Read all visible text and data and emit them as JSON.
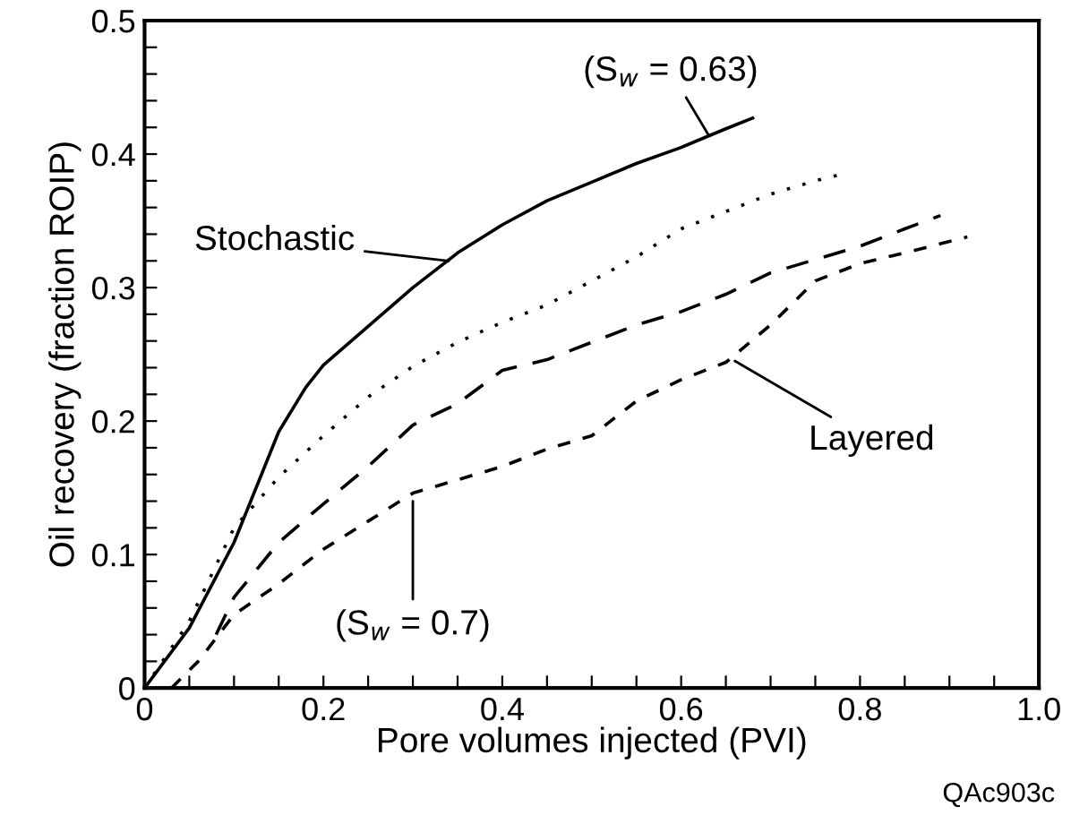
{
  "chart_data": {
    "type": "line",
    "xlabel": "Pore volumes injected (PVI)",
    "ylabel": "Oil recovery (fraction ROIP)",
    "xlim": [
      0,
      1
    ],
    "ylim": [
      0,
      0.5
    ],
    "xticks": [
      0,
      {
        "value": 0.05,
        "label": null
      },
      {
        "value": 0.1,
        "label": null
      },
      {
        "value": 0.15,
        "label": null
      },
      0.2,
      {
        "value": 0.25,
        "label": null
      },
      {
        "value": 0.3,
        "label": null
      },
      {
        "value": 0.35,
        "label": null
      },
      0.4,
      {
        "value": 0.45,
        "label": null
      },
      {
        "value": 0.5,
        "label": null
      },
      {
        "value": 0.55,
        "label": null
      },
      0.6,
      {
        "value": 0.65,
        "label": null
      },
      {
        "value": 0.7,
        "label": null
      },
      {
        "value": 0.75,
        "label": null
      },
      0.8,
      {
        "value": 0.85,
        "label": null
      },
      {
        "value": 0.9,
        "label": null
      },
      {
        "value": 0.95,
        "label": null
      },
      {
        "value": 1,
        "label": "1.0"
      }
    ],
    "yticks": [
      0,
      {
        "value": 0.02,
        "label": null
      },
      {
        "value": 0.04,
        "label": null
      },
      {
        "value": 0.06,
        "label": null
      },
      {
        "value": 0.08,
        "label": null
      },
      0.1,
      {
        "value": 0.12,
        "label": null
      },
      {
        "value": 0.14,
        "label": null
      },
      {
        "value": 0.16,
        "label": null
      },
      {
        "value": 0.18,
        "label": null
      },
      0.2,
      {
        "value": 0.22,
        "label": null
      },
      {
        "value": 0.24,
        "label": null
      },
      {
        "value": 0.26,
        "label": null
      },
      {
        "value": 0.28,
        "label": null
      },
      0.3,
      {
        "value": 0.32,
        "label": null
      },
      {
        "value": 0.34,
        "label": null
      },
      {
        "value": 0.36,
        "label": null
      },
      {
        "value": 0.38,
        "label": null
      },
      0.4,
      {
        "value": 0.42,
        "label": null
      },
      {
        "value": 0.44,
        "label": null
      },
      {
        "value": 0.46,
        "label": null
      },
      {
        "value": 0.48,
        "label": null
      },
      0.5
    ],
    "grid": false,
    "legend": false,
    "series": [
      {
        "color": "#000000",
        "line_style": "solid",
        "x": [
          0,
          0.05,
          0.1,
          0.15,
          0.18,
          0.2,
          0.25,
          0.3,
          0.35,
          0.4,
          0.45,
          0.5,
          0.55,
          0.6,
          0.65,
          0.68
        ],
        "values": [
          0,
          0.045,
          0.109,
          0.192,
          0.225,
          0.242,
          0.271,
          0.3,
          0.326,
          0.347,
          0.365,
          0.379,
          0.393,
          0.405,
          0.419,
          0.427
        ]
      },
      {
        "color": "#000000",
        "line_style": "dotted",
        "x": [
          0,
          0.05,
          0.1,
          0.15,
          0.2,
          0.25,
          0.3,
          0.35,
          0.4,
          0.45,
          0.5,
          0.55,
          0.6,
          0.65,
          0.7,
          0.75,
          0.78
        ],
        "values": [
          0,
          0.05,
          0.12,
          0.158,
          0.189,
          0.218,
          0.241,
          0.259,
          0.274,
          0.287,
          0.305,
          0.323,
          0.344,
          0.357,
          0.37,
          0.38,
          0.385
        ]
      },
      {
        "color": "#000000",
        "line_style": "dashed",
        "x": [
          0.08,
          0.1,
          0.15,
          0.2,
          0.25,
          0.3,
          0.35,
          0.4,
          0.45,
          0.5,
          0.55,
          0.6,
          0.65,
          0.7,
          0.75,
          0.8,
          0.85,
          0.89
        ],
        "values": [
          0.04,
          0.068,
          0.109,
          0.138,
          0.166,
          0.197,
          0.213,
          0.238,
          0.246,
          0.259,
          0.272,
          0.282,
          0.295,
          0.311,
          0.321,
          0.331,
          0.344,
          0.354
        ]
      },
      {
        "color": "#000000",
        "line_style": "dashed",
        "x": [
          0.03,
          0.06,
          0.1,
          0.15,
          0.2,
          0.25,
          0.3,
          0.35,
          0.4,
          0.45,
          0.5,
          0.55,
          0.6,
          0.65,
          0.7,
          0.75,
          0.8,
          0.85,
          0.92
        ],
        "values": [
          0,
          0.02,
          0.055,
          0.078,
          0.104,
          0.125,
          0.146,
          0.156,
          0.166,
          0.179,
          0.189,
          0.215,
          0.231,
          0.244,
          0.272,
          0.305,
          0.318,
          0.326,
          0.338
        ]
      }
    ],
    "annotations": [
      {
        "text": "Stochastic",
        "x": 0.34,
        "y": 0.32
      },
      {
        "text": "Layered",
        "x": 0.66,
        "y": 0.245
      },
      {
        "text": "(S$_{w}$ = 0.63)",
        "x": 0.63,
        "y": 0.415
      },
      {
        "text": "(S$_{w}$ = 0.7)",
        "x": 0.3,
        "y": 0.14
      },
      "QAc903c"
    ]
  }
}
